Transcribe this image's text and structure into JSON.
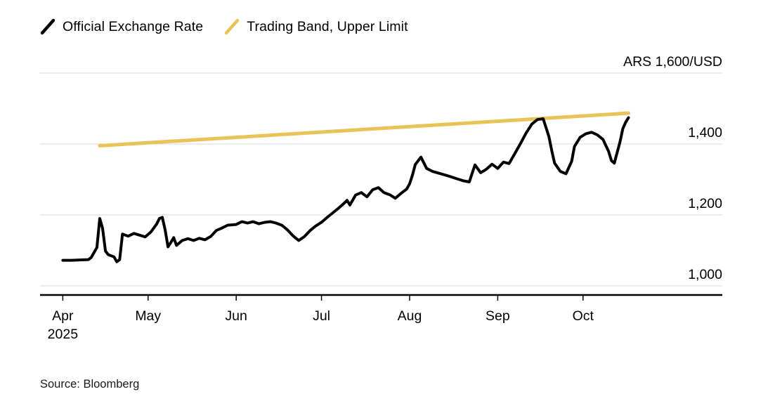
{
  "legend": {
    "items": [
      {
        "label": "Official Exchange Rate",
        "color": "#000000"
      },
      {
        "label": "Trading Band, Upper Limit",
        "color": "#EAC358"
      }
    ]
  },
  "source": "Source: Bloomberg",
  "chart_data": {
    "type": "line",
    "title": "",
    "x_unit": "days since 2025-04-01",
    "x_domain": [
      -8,
      232
    ],
    "y_domain": [
      1000,
      1600
    ],
    "grid": true,
    "legend_position": "top-left",
    "style": {
      "grid_color": "#D9D9D9",
      "axis_color": "#000000",
      "text_color": "#000000",
      "background": "#FFFFFF"
    },
    "y_ticks": [
      {
        "value": 1000,
        "label": "1,000"
      },
      {
        "value": 1200,
        "label": "1,200"
      },
      {
        "value": 1400,
        "label": "1,400"
      },
      {
        "value": 1600,
        "label": "ARS 1,600/USD"
      }
    ],
    "x_ticks": [
      {
        "day": 0,
        "label": "Apr",
        "sublabel": "2025"
      },
      {
        "day": 30,
        "label": "May"
      },
      {
        "day": 61,
        "label": "Jun"
      },
      {
        "day": 91,
        "label": "Jul"
      },
      {
        "day": 122,
        "label": "Aug"
      },
      {
        "day": 153,
        "label": "Sep"
      },
      {
        "day": 183,
        "label": "Oct"
      }
    ],
    "series": [
      {
        "name": "Trading Band, Upper Limit",
        "color": "#EAC358",
        "width": 5,
        "points": [
          [
            13,
            1395
          ],
          [
            199,
            1487
          ]
        ]
      },
      {
        "name": "Official Exchange Rate",
        "color": "#000000",
        "width": 4,
        "points": [
          [
            0,
            1072
          ],
          [
            3,
            1072
          ],
          [
            6,
            1073
          ],
          [
            9,
            1074
          ],
          [
            10,
            1080
          ],
          [
            12,
            1108
          ],
          [
            13,
            1190
          ],
          [
            14,
            1162
          ],
          [
            15,
            1098
          ],
          [
            16,
            1088
          ],
          [
            18,
            1082
          ],
          [
            19,
            1068
          ],
          [
            20,
            1074
          ],
          [
            21,
            1146
          ],
          [
            23,
            1140
          ],
          [
            25,
            1148
          ],
          [
            27,
            1143
          ],
          [
            29,
            1138
          ],
          [
            31,
            1152
          ],
          [
            33,
            1174
          ],
          [
            34,
            1190
          ],
          [
            35,
            1193
          ],
          [
            36,
            1158
          ],
          [
            37,
            1110
          ],
          [
            38,
            1122
          ],
          [
            39,
            1136
          ],
          [
            40,
            1114
          ],
          [
            42,
            1128
          ],
          [
            44,
            1133
          ],
          [
            46,
            1128
          ],
          [
            48,
            1134
          ],
          [
            50,
            1130
          ],
          [
            52,
            1139
          ],
          [
            54,
            1156
          ],
          [
            56,
            1163
          ],
          [
            58,
            1171
          ],
          [
            61,
            1173
          ],
          [
            63,
            1181
          ],
          [
            65,
            1177
          ],
          [
            67,
            1181
          ],
          [
            69,
            1175
          ],
          [
            71,
            1179
          ],
          [
            73,
            1181
          ],
          [
            75,
            1177
          ],
          [
            77,
            1171
          ],
          [
            79,
            1158
          ],
          [
            81,
            1141
          ],
          [
            83,
            1128
          ],
          [
            85,
            1139
          ],
          [
            87,
            1156
          ],
          [
            89,
            1169
          ],
          [
            91,
            1179
          ],
          [
            93,
            1193
          ],
          [
            95,
            1206
          ],
          [
            97,
            1219
          ],
          [
            99,
            1233
          ],
          [
            100,
            1241
          ],
          [
            101,
            1228
          ],
          [
            103,
            1256
          ],
          [
            105,
            1263
          ],
          [
            107,
            1251
          ],
          [
            109,
            1271
          ],
          [
            111,
            1277
          ],
          [
            113,
            1263
          ],
          [
            115,
            1257
          ],
          [
            117,
            1247
          ],
          [
            119,
            1261
          ],
          [
            121,
            1273
          ],
          [
            122,
            1288
          ],
          [
            123,
            1312
          ],
          [
            124,
            1342
          ],
          [
            126,
            1363
          ],
          [
            128,
            1331
          ],
          [
            130,
            1323
          ],
          [
            133,
            1316
          ],
          [
            136,
            1309
          ],
          [
            139,
            1301
          ],
          [
            141,
            1296
          ],
          [
            143,
            1293
          ],
          [
            145,
            1341
          ],
          [
            147,
            1319
          ],
          [
            149,
            1329
          ],
          [
            151,
            1343
          ],
          [
            153,
            1331
          ],
          [
            155,
            1349
          ],
          [
            157,
            1345
          ],
          [
            159,
            1373
          ],
          [
            161,
            1401
          ],
          [
            163,
            1431
          ],
          [
            165,
            1456
          ],
          [
            167,
            1469
          ],
          [
            169,
            1471
          ],
          [
            171,
            1421
          ],
          [
            172,
            1381
          ],
          [
            173,
            1346
          ],
          [
            175,
            1323
          ],
          [
            177,
            1316
          ],
          [
            179,
            1351
          ],
          [
            180,
            1393
          ],
          [
            182,
            1419
          ],
          [
            184,
            1429
          ],
          [
            186,
            1433
          ],
          [
            188,
            1426
          ],
          [
            190,
            1413
          ],
          [
            192,
            1379
          ],
          [
            193,
            1353
          ],
          [
            194,
            1346
          ],
          [
            196,
            1406
          ],
          [
            197,
            1443
          ],
          [
            198,
            1461
          ],
          [
            199,
            1474
          ]
        ]
      }
    ]
  }
}
